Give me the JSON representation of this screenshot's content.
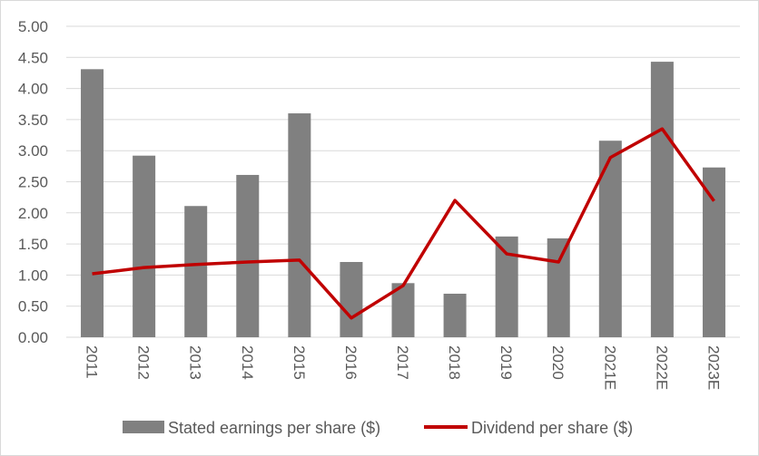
{
  "chart_data": {
    "type": "bar",
    "title": "",
    "xlabel": "",
    "ylabel": "",
    "ylim": [
      0,
      5
    ],
    "yticks": [
      "0.00",
      "0.50",
      "1.00",
      "1.50",
      "2.00",
      "2.50",
      "3.00",
      "3.50",
      "4.00",
      "4.50",
      "5.00"
    ],
    "grid": true,
    "legend_position": "bottom",
    "categories": [
      "2011",
      "2012",
      "2013",
      "2014",
      "2015",
      "2016",
      "2017",
      "2018",
      "2019",
      "2020",
      "2021E",
      "2022E",
      "2023E"
    ],
    "series": [
      {
        "name": "Stated earnings per share ($)",
        "type": "bar",
        "color": "#808080",
        "values": [
          4.31,
          2.92,
          2.11,
          2.61,
          3.6,
          1.21,
          0.87,
          0.7,
          1.62,
          1.59,
          3.16,
          4.43,
          2.73
        ]
      },
      {
        "name": "Dividend per share ($)",
        "type": "line",
        "color": "#c00000",
        "values": [
          1.02,
          1.12,
          1.17,
          1.21,
          1.24,
          0.31,
          0.83,
          2.2,
          1.34,
          1.21,
          2.89,
          3.35,
          2.19
        ]
      }
    ]
  }
}
